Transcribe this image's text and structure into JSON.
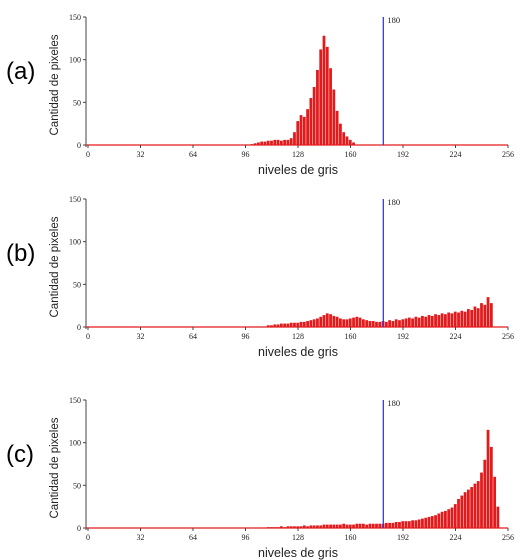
{
  "chart_data": [
    {
      "type": "bar",
      "panel_label": "(a)",
      "xlabel": "niveles de gris",
      "ylabel": "Cantidad de pixeles",
      "xlim": [
        0,
        256
      ],
      "ylim": [
        0,
        150
      ],
      "xticks": [
        "0",
        "32",
        "64",
        "96",
        "128",
        "160",
        "192",
        "224",
        "256"
      ],
      "yticks": [
        "0",
        "50",
        "100",
        "150"
      ],
      "threshold": {
        "value": 180,
        "label": "180"
      },
      "bar_color": "#e31a1c",
      "threshold_color": "#3a3ad6",
      "x": [
        100,
        102,
        104,
        106,
        108,
        110,
        112,
        114,
        116,
        118,
        120,
        122,
        124,
        126,
        128,
        130,
        132,
        134,
        136,
        138,
        140,
        142,
        144,
        146,
        148,
        150,
        152,
        154,
        156,
        158,
        160,
        162
      ],
      "values": [
        1,
        2,
        3,
        4,
        4,
        5,
        5,
        6,
        6,
        5,
        6,
        6,
        8,
        15,
        28,
        35,
        33,
        42,
        55,
        68,
        88,
        112,
        128,
        115,
        90,
        65,
        40,
        25,
        15,
        10,
        6,
        3
      ]
    },
    {
      "type": "bar",
      "panel_label": "(b)",
      "xlabel": "niveles de gris",
      "ylabel": "Cantidad de pixeles",
      "xlim": [
        0,
        256
      ],
      "ylim": [
        0,
        150
      ],
      "xticks": [
        "0",
        "32",
        "64",
        "96",
        "128",
        "160",
        "192",
        "224",
        "256"
      ],
      "yticks": [
        "0",
        "50",
        "100",
        "150"
      ],
      "threshold": {
        "value": 180,
        "label": "180"
      },
      "bar_color": "#e31a1c",
      "threshold_color": "#3a3ad6",
      "x": [
        110,
        112,
        114,
        116,
        118,
        120,
        122,
        124,
        126,
        128,
        130,
        132,
        134,
        136,
        138,
        140,
        142,
        144,
        146,
        148,
        150,
        152,
        154,
        156,
        158,
        160,
        162,
        164,
        166,
        168,
        170,
        172,
        174,
        176,
        178,
        180,
        182,
        184,
        186,
        188,
        190,
        192,
        194,
        196,
        198,
        200,
        202,
        204,
        206,
        208,
        210,
        212,
        214,
        216,
        218,
        220,
        222,
        224,
        226,
        228,
        230,
        232,
        234,
        236,
        238,
        240,
        242,
        244,
        246
      ],
      "values": [
        2,
        2,
        3,
        3,
        4,
        4,
        4,
        5,
        5,
        5,
        6,
        6,
        7,
        8,
        9,
        10,
        12,
        14,
        16,
        15,
        13,
        12,
        10,
        9,
        9,
        10,
        11,
        12,
        11,
        9,
        8,
        7,
        7,
        6,
        6,
        7,
        6,
        8,
        7,
        9,
        8,
        9,
        10,
        11,
        10,
        12,
        11,
        13,
        12,
        14,
        13,
        15,
        14,
        16,
        15,
        17,
        16,
        18,
        17,
        19,
        18,
        21,
        20,
        24,
        22,
        28,
        26,
        35,
        28
      ]
    },
    {
      "type": "bar",
      "panel_label": "(c)",
      "xlabel": "niveles de gris",
      "ylabel": "Cantidad de pixeles",
      "xlim": [
        0,
        256
      ],
      "ylim": [
        0,
        150
      ],
      "xticks": [
        "0",
        "32",
        "64",
        "96",
        "128",
        "160",
        "192",
        "224",
        "256"
      ],
      "yticks": [
        "0",
        "50",
        "100",
        "150"
      ],
      "threshold": {
        "value": 180,
        "label": "180"
      },
      "bar_color": "#e31a1c",
      "threshold_color": "#3a3ad6",
      "x": [
        110,
        112,
        114,
        116,
        118,
        120,
        122,
        124,
        126,
        128,
        130,
        132,
        134,
        136,
        138,
        140,
        142,
        144,
        146,
        148,
        150,
        152,
        154,
        156,
        158,
        160,
        162,
        164,
        166,
        168,
        170,
        172,
        174,
        176,
        178,
        180,
        182,
        184,
        186,
        188,
        190,
        192,
        194,
        196,
        198,
        200,
        202,
        204,
        206,
        208,
        210,
        212,
        214,
        216,
        218,
        220,
        222,
        224,
        226,
        228,
        230,
        232,
        234,
        236,
        238,
        240,
        242,
        244,
        246,
        248,
        250
      ],
      "values": [
        1,
        1,
        1,
        1,
        2,
        1,
        2,
        2,
        2,
        2,
        2,
        3,
        2,
        3,
        3,
        3,
        3,
        4,
        4,
        4,
        4,
        4,
        4,
        5,
        4,
        4,
        4,
        5,
        5,
        5,
        4,
        5,
        5,
        5,
        5,
        5,
        6,
        6,
        6,
        7,
        7,
        8,
        8,
        8,
        9,
        9,
        10,
        11,
        12,
        13,
        14,
        15,
        17,
        19,
        20,
        22,
        24,
        28,
        34,
        38,
        42,
        45,
        48,
        52,
        55,
        65,
        80,
        115,
        95,
        60,
        25
      ]
    }
  ]
}
